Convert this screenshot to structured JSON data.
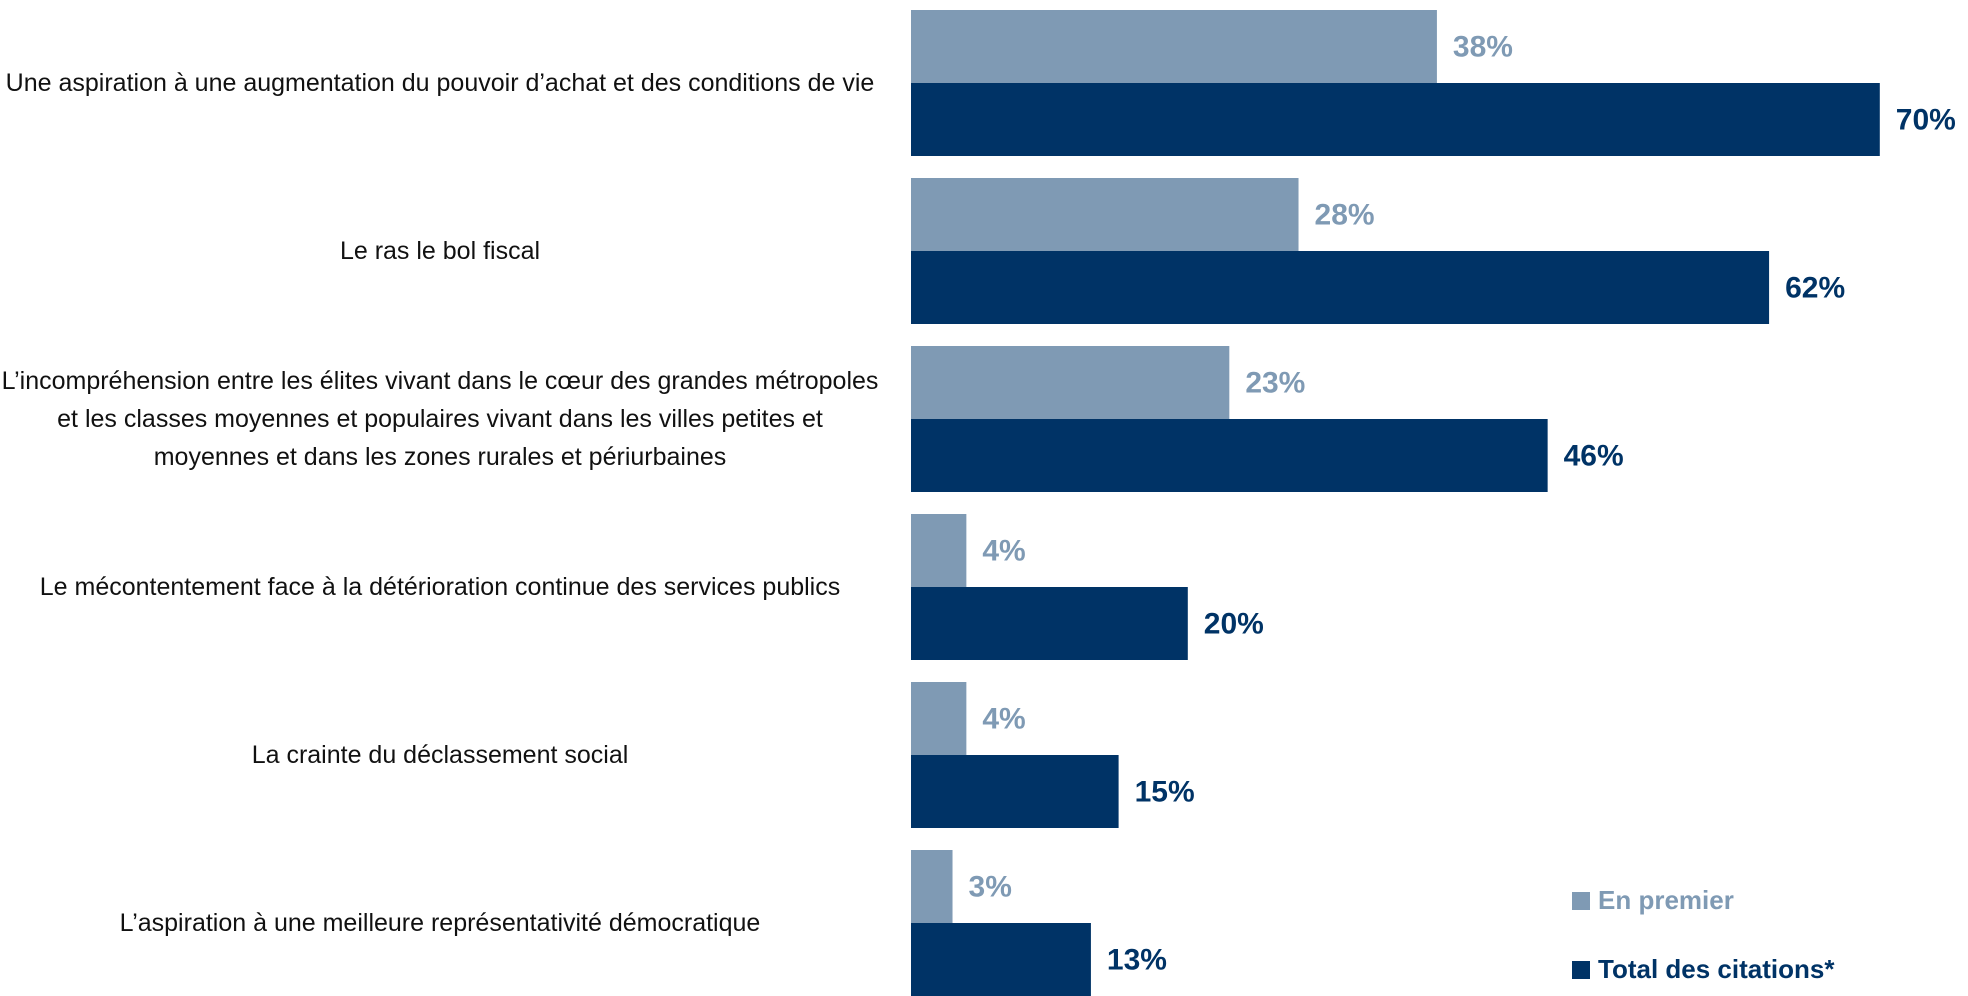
{
  "chart_data": {
    "type": "bar",
    "orientation": "horizontal",
    "categories": [
      "Une aspiration à une augmentation du pouvoir d’achat et des conditions de vie",
      "Le ras le bol fiscal",
      "L’incompréhension entre les élites vivant dans le cœur des grandes métropoles et les classes moyennes et populaires vivant dans les villes petites et moyennes et dans les zones rurales et périurbaines",
      "Le mécontentement face à la détérioration continue des services publics",
      "La crainte du déclassement social",
      "L’aspiration à une meilleure représentativité démocratique"
    ],
    "series": [
      {
        "name": "En premier",
        "color": "#7f9ab4",
        "values": [
          38,
          28,
          23,
          4,
          4,
          3
        ],
        "value_labels": [
          "38%",
          "28%",
          "23%",
          "4%",
          "4%",
          "3%"
        ]
      },
      {
        "name": "Total des citations*",
        "color": "#003366",
        "values": [
          70,
          62,
          46,
          20,
          15,
          13
        ],
        "value_labels": [
          "70%",
          "62%",
          "46%",
          "20%",
          "15%",
          "13%"
        ]
      }
    ],
    "legend": "bottom-right"
  }
}
